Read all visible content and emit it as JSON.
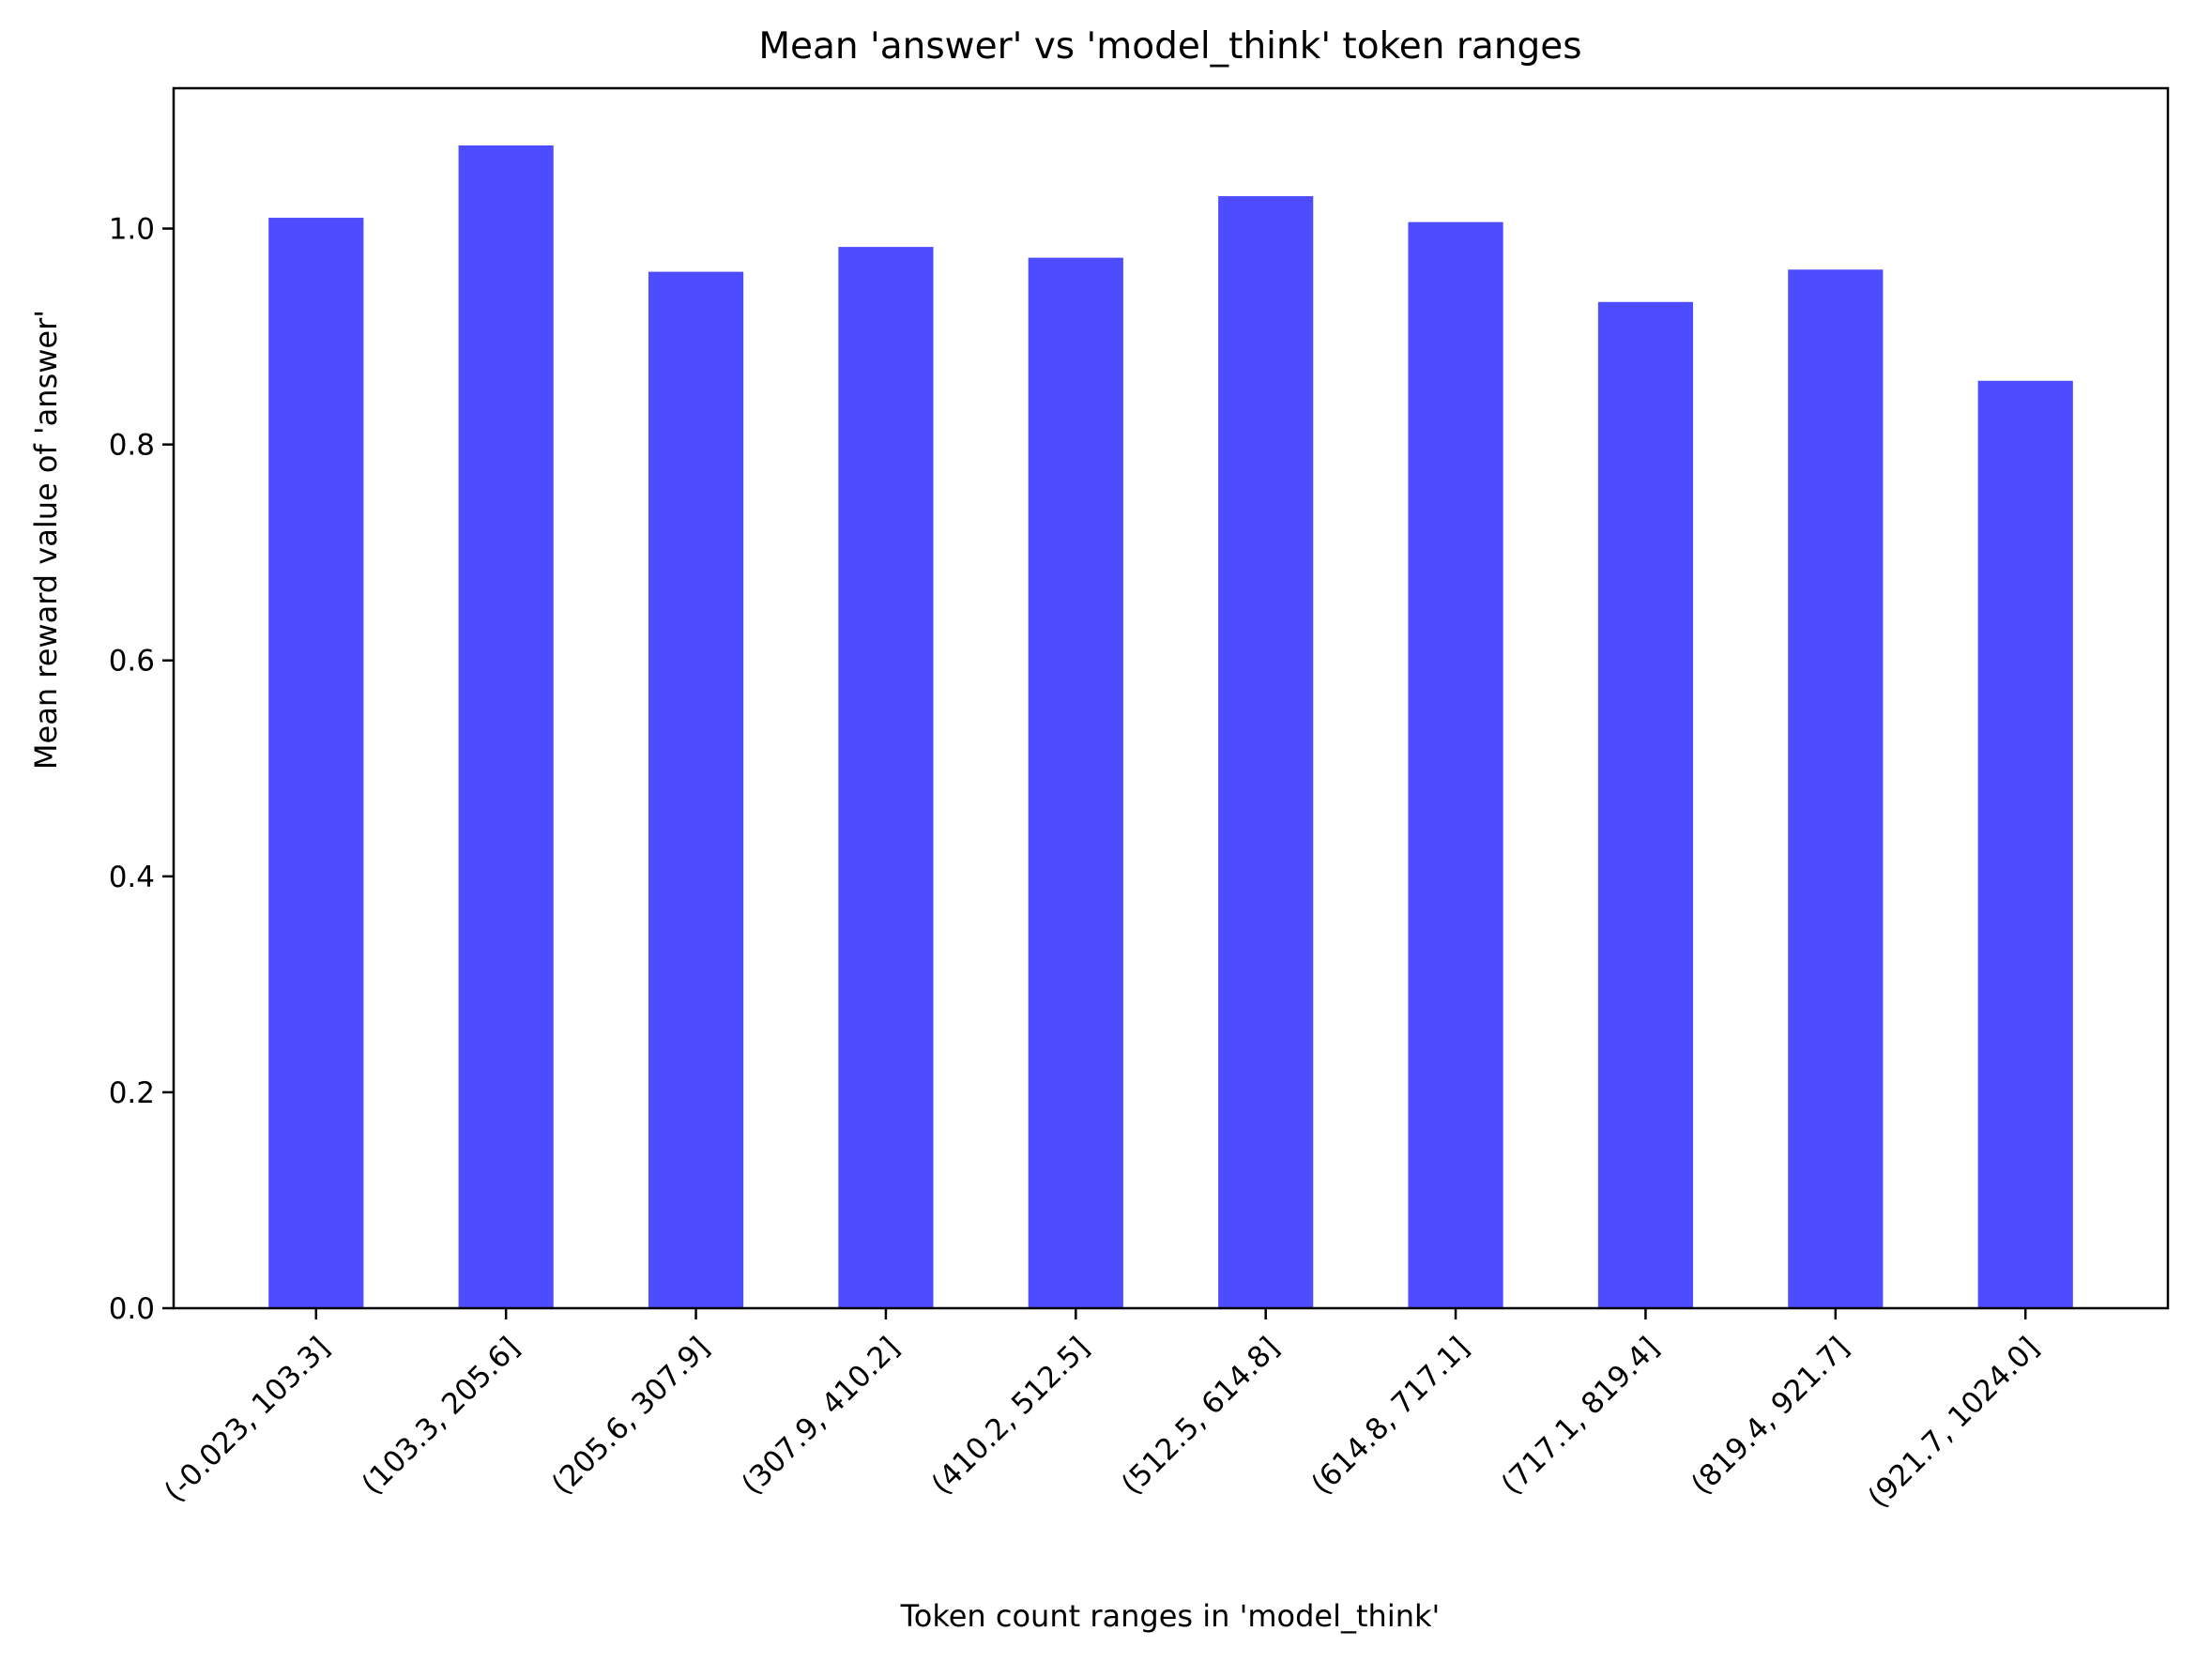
{
  "chart_data": {
    "type": "bar",
    "title": "Mean 'answer' vs 'model_think' token ranges",
    "xlabel": "Token count ranges in 'model_think'",
    "ylabel": "Mean reward value of 'answer'",
    "categories": [
      "(-0.023, 103.3]",
      "(103.3, 205.6]",
      "(205.6, 307.9]",
      "(307.9, 410.2]",
      "(410.2, 512.5]",
      "(512.5, 614.8]",
      "(614.8, 717.1]",
      "(717.1, 819.4]",
      "(819.4, 921.7]",
      "(921.7, 1024.0]"
    ],
    "values": [
      1.01,
      1.077,
      0.96,
      0.983,
      0.973,
      1.03,
      1.006,
      0.932,
      0.962,
      0.859
    ],
    "ylim": [
      0,
      1.13
    ],
    "yticks": [
      0.0,
      0.2,
      0.4,
      0.6,
      0.8,
      1.0
    ],
    "ytick_labels": [
      "0.0",
      "0.2",
      "0.4",
      "0.6",
      "0.8",
      "1.0"
    ],
    "bar_color": "#4d4dff",
    "grid": false,
    "legend": "none"
  }
}
